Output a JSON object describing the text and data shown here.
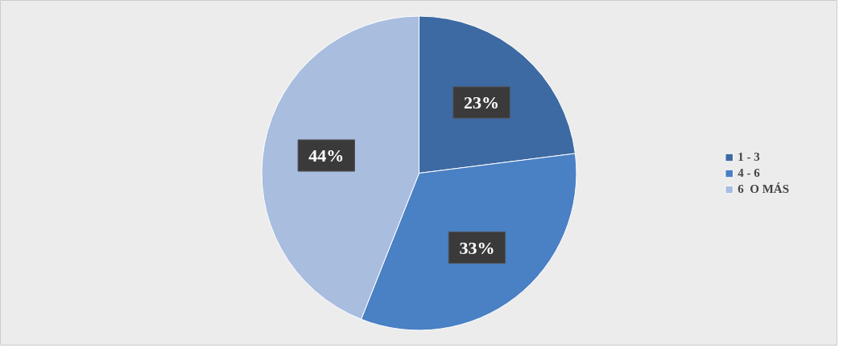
{
  "chart_data": {
    "type": "pie",
    "categories": [
      "1 - 3",
      "4 - 6",
      "6  O MÁS"
    ],
    "values": [
      23,
      33,
      44
    ],
    "value_labels": [
      "23%",
      "33%",
      "44%"
    ],
    "colors": [
      "#3d6aa3",
      "#4a80c4",
      "#a9bddf"
    ],
    "legend": "right"
  }
}
